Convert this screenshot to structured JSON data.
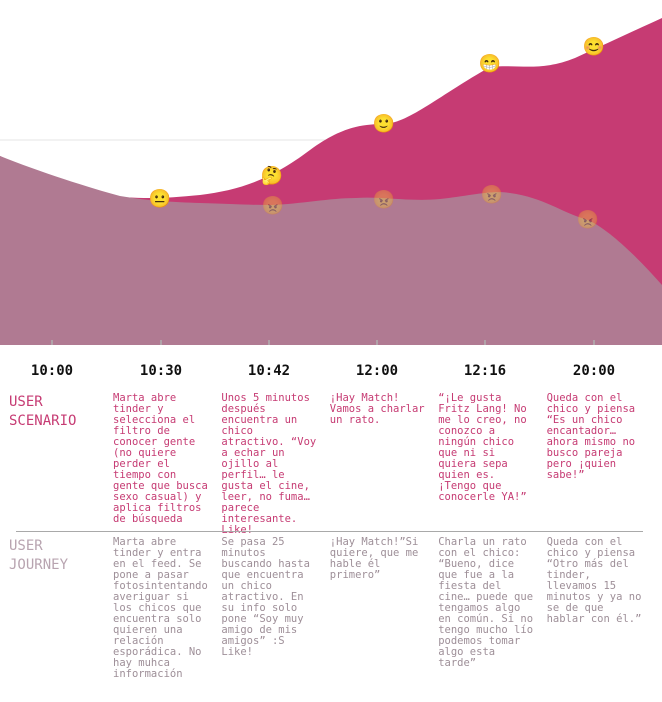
{
  "chart_data": {
    "type": "area",
    "x": [
      "10:00",
      "10:30",
      "10:42",
      "12:00",
      "12:16",
      "20:00"
    ],
    "series": [
      {
        "color": "#c63b73",
        "emojis": [
          "😐",
          "🤔",
          "🙂",
          "😁",
          "😊"
        ]
      },
      {
        "color": "#b07a92",
        "emojis": [
          "😐",
          "😠",
          "😠",
          "😠",
          "😠"
        ]
      }
    ]
  },
  "rows": {
    "scenario": {
      "title": "USER\nSCENARIO",
      "cells": [
        "Marta abre tinder y selecciona el filtro de conocer gente (no quiere perder el tiempo con gente que busca sexo casual) y aplica filtros de búsqueda",
        "Unos 5 minutos después encuentra un chico atractivo. “Voy a echar un ojillo al perfil… le gusta el cine, leer, no fuma… parece interesante. Like!",
        "¡Hay Match! Vamos a charlar un rato.",
        "“¡Le gusta Fritz Lang! No me lo creo, no conozco a ningún chico que ni si quiera sepa quien es. ¡Tengo que conocerle YA!”",
        "Queda con el chico y piensa “Es un chico encantador…ahora mismo no busco pareja pero ¡quien sabe!”"
      ]
    },
    "journey": {
      "title": "USER\nJOURNEY",
      "cells": [
        "Marta abre tinder y entra en el feed. Se pone a pasar fotosintentando averiguar si los chicos que encuentra solo quieren una relación esporádica. No hay muhca información",
        "Se pasa 25 minutos buscando hasta que encuentra un chico atractivo. En su info solo pone “Soy muy amigo de mis amigos” :S Like!",
        "¡Hay Match!”Si quiere, que me hable él primero”",
        "Charla un rato con el chico: “Bueno, dice que fue a la fiesta del cine… puede que tengamos algo en común. Si no tengo mucho lío podemos tomar algo esta tarde”",
        "Queda con el chico y piensa “Otro más del tinder, llevamos 15 minutos y ya no se de que hablar con él.”"
      ]
    }
  }
}
